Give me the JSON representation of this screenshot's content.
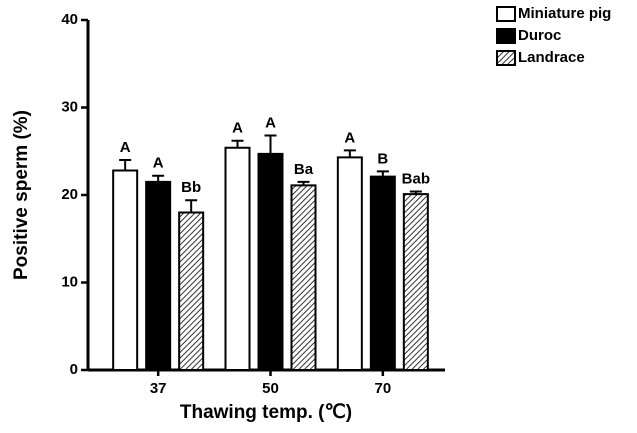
{
  "chart_data": {
    "type": "bar",
    "x_label": "Thawing temp. (℃)",
    "y_label": "Positive sperm (%)",
    "categories": [
      "37",
      "50",
      "70"
    ],
    "series": [
      {
        "name": "Miniature pig",
        "color": "#ffffff",
        "values": [
          22.8,
          25.4,
          24.3
        ],
        "errors": [
          1.2,
          0.8,
          0.8
        ],
        "labels": [
          "A",
          "A",
          "A"
        ]
      },
      {
        "name": "Duroc",
        "color": "#000000",
        "values": [
          21.5,
          24.7,
          22.1
        ],
        "errors": [
          0.7,
          2.1,
          0.6
        ],
        "labels": [
          "A",
          "A",
          "B"
        ]
      },
      {
        "name": "Landrace",
        "color": "#ffffff",
        "pattern": "hatch",
        "values": [
          18.0,
          21.1,
          20.1
        ],
        "errors": [
          1.4,
          0.4,
          0.3
        ],
        "labels": [
          "Bb",
          "Ba",
          "Bab"
        ]
      }
    ],
    "ylim": [
      0,
      40
    ],
    "yticks": [
      0,
      10,
      20,
      30,
      40
    ],
    "legend": "top-right"
  }
}
